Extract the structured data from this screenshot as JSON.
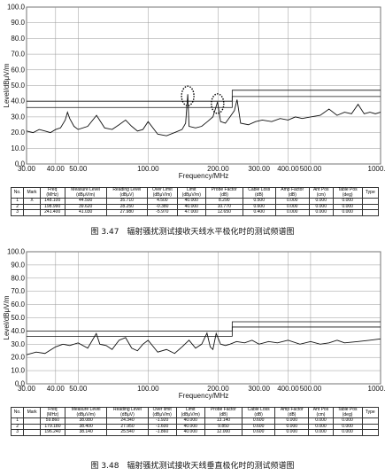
{
  "chart_data": [
    {
      "type": "line",
      "x_label": "Frequency/MHz",
      "y_label": "Level/dBμV/m",
      "log_x": true,
      "grid": true,
      "xlim": [
        30,
        1000
      ],
      "ylim": [
        0,
        100
      ],
      "xticks": [
        {
          "value": 30,
          "label": "30.00"
        },
        {
          "value": 40,
          "label": "40.00"
        },
        {
          "value": 50,
          "label": "50.00"
        },
        {
          "value": 100,
          "label": "100.00"
        },
        {
          "value": 200,
          "label": "200.00"
        },
        {
          "value": 300,
          "label": "300.00"
        },
        {
          "value": 400,
          "label": "400.00"
        },
        {
          "value": 500,
          "label": "500.00"
        },
        {
          "value": 1000,
          "label": "1000.00"
        }
      ],
      "yticks": [
        {
          "value": 0,
          "label": "0.0"
        },
        {
          "value": 10,
          "label": "10.0"
        },
        {
          "value": 20,
          "label": "20.0"
        },
        {
          "value": 30,
          "label": "30.0"
        },
        {
          "value": 40,
          "label": "40.0"
        },
        {
          "value": 50,
          "label": "50.0"
        },
        {
          "value": 60,
          "label": "60.0"
        },
        {
          "value": 70,
          "label": "70.0"
        },
        {
          "value": 80,
          "label": "80.0"
        },
        {
          "value": 90,
          "label": "90.0"
        },
        {
          "value": 100,
          "label": "100.0"
        }
      ],
      "series": [
        {
          "color": "#111111",
          "x": [
            30,
            32,
            34,
            36,
            38,
            40,
            42,
            44,
            45,
            46,
            48,
            50,
            55,
            60,
            65,
            70,
            75,
            80,
            85,
            90,
            95,
            100,
            110,
            120,
            130,
            140,
            145,
            148.1,
            150,
            160,
            170,
            180,
            190,
            198.99,
            205,
            215,
            225,
            235,
            241.4,
            250,
            270,
            290,
            310,
            340,
            370,
            400,
            430,
            460,
            500,
            550,
            600,
            650,
            700,
            750,
            800,
            850,
            900,
            950,
            1000
          ],
          "values": [
            21,
            20,
            22,
            21,
            20,
            22,
            23,
            28,
            33,
            29,
            24,
            22,
            24,
            31,
            23,
            22,
            25,
            28,
            24,
            21,
            22,
            27,
            19,
            18,
            20,
            22,
            26,
            44.5,
            24,
            23,
            24,
            27,
            30,
            39.62,
            27,
            26,
            30,
            34,
            41.03,
            26,
            25,
            27,
            28,
            27,
            29,
            28,
            30,
            29,
            30,
            31,
            35,
            31,
            33,
            32,
            38,
            32,
            33,
            32,
            33
          ]
        },
        {
          "color": "#111111",
          "x": [
            30,
            230,
            230,
            1000
          ],
          "values": [
            40,
            40,
            47,
            47
          ]
        },
        {
          "color": "#111111",
          "x": [
            30,
            230,
            230,
            1000
          ],
          "values": [
            36,
            36,
            43,
            43
          ]
        }
      ]
    },
    {
      "type": "line",
      "x_label": "Frequency/MHz",
      "y_label": "Level/dBμV/m",
      "log_x": true,
      "grid": true,
      "xlim": [
        30,
        1000
      ],
      "ylim": [
        0,
        100
      ],
      "xticks": [
        {
          "value": 30,
          "label": "30.00"
        },
        {
          "value": 40,
          "label": "40.00"
        },
        {
          "value": 50,
          "label": "50.00"
        },
        {
          "value": 100,
          "label": "100.00"
        },
        {
          "value": 200,
          "label": "200.00"
        },
        {
          "value": 300,
          "label": "300.00"
        },
        {
          "value": 400,
          "label": "400.00"
        },
        {
          "value": 500,
          "label": "500.00"
        },
        {
          "value": 1000,
          "label": "1000.00"
        }
      ],
      "yticks": [
        {
          "value": 0,
          "label": "0.0"
        },
        {
          "value": 10,
          "label": "10.0"
        },
        {
          "value": 20,
          "label": "20.0"
        },
        {
          "value": 30,
          "label": "30.0"
        },
        {
          "value": 40,
          "label": "40.0"
        },
        {
          "value": 50,
          "label": "50.0"
        },
        {
          "value": 60,
          "label": "60.0"
        },
        {
          "value": 70,
          "label": "70.0"
        },
        {
          "value": 80,
          "label": "80.0"
        },
        {
          "value": 90,
          "label": "90.0"
        },
        {
          "value": 100,
          "label": "100.0"
        }
      ],
      "series": [
        {
          "color": "#111111",
          "x": [
            30,
            33,
            36,
            40,
            43,
            46,
            50,
            55,
            59.86,
            62,
            66,
            70,
            75,
            80,
            85,
            90,
            95,
            100,
            110,
            120,
            130,
            140,
            150,
            160,
            170,
            179.18,
            185,
            190,
            196.24,
            205,
            215,
            225,
            240,
            260,
            280,
            300,
            330,
            360,
            400,
            450,
            500,
            550,
            600,
            650,
            700,
            800,
            900,
            1000
          ],
          "values": [
            22,
            24,
            23,
            28,
            30,
            29,
            31,
            27,
            38.08,
            30,
            29,
            26,
            33,
            35,
            27,
            25,
            30,
            33,
            24,
            26,
            23,
            28,
            33,
            27,
            30,
            38.4,
            28,
            26,
            38.14,
            30,
            29,
            30,
            32,
            31,
            33,
            30,
            32,
            31,
            33,
            30,
            32,
            30,
            31,
            33,
            31,
            32,
            33,
            34
          ]
        },
        {
          "color": "#111111",
          "x": [
            30,
            230,
            230,
            1000
          ],
          "values": [
            40,
            40,
            47,
            47
          ]
        },
        {
          "color": "#111111",
          "x": [
            30,
            230,
            230,
            1000
          ],
          "values": [
            36,
            36,
            43,
            43
          ]
        }
      ]
    }
  ],
  "tables": [
    {
      "header": [
        "No.",
        "Mark",
        "Freq\n(MHz)",
        "Measure Level\n(dBμV/m)",
        "Reading Level\n(dBμV)",
        "Over Limit\n(dBμV/m)",
        "Limit\n(dBμV/m)",
        "Probe Factor\n(dB)",
        "Cable Loss\n(dB)",
        "Amp Factor\n(dB)",
        "Ant Pos\n(cm)",
        "Table Pos\n(deg)",
        "Type"
      ],
      "rows": [
        [
          "1",
          "X",
          "148.100",
          "44.500",
          "35.710",
          "4.500",
          "40.000",
          "8.290",
          "0.500",
          "0.000",
          "0.000",
          "0.000",
          null
        ],
        [
          "2",
          null,
          "198.990",
          "39.620",
          "28.250",
          "-0.380",
          "40.000",
          "10.770",
          "0.600",
          "0.000",
          "0.000",
          "0.000",
          null
        ],
        [
          "3",
          null,
          "241.400",
          "41.030",
          "27.980",
          "-5.970",
          "47.000",
          "12.650",
          "0.400",
          "0.000",
          "0.000",
          "0.000",
          null
        ]
      ]
    },
    {
      "header": [
        "No.",
        "Mark",
        "Freq\n(MHz)",
        "Measure Level\n(dBμV/m)",
        "Reading Level\n(dBμV)",
        "Over limit\n(dBμV/m)",
        "Limit\n(dBμV/m)",
        "Probe Factor\n(dB)",
        "Cable Loss\n(dB)",
        "Amp Factor\n(dB)",
        "Ant Pos\n(cm)",
        "Table Pos\n(deg)",
        "Type"
      ],
      "rows": [
        [
          "1",
          null,
          "59.860",
          "38.080",
          "24.340",
          "-1.920",
          "40.000",
          "13.140",
          "0.600",
          "0.000",
          "0.000",
          "0.000",
          null
        ],
        [
          "2",
          null,
          "179.180",
          "38.400",
          "27.950",
          "-1.600",
          "40.000",
          "9.850",
          "0.600",
          "0.000",
          "0.000",
          "0.000",
          null
        ],
        [
          "3",
          null,
          "196.240",
          "38.140",
          "25.540",
          "-1.860",
          "40.000",
          "12.000",
          "0.600",
          "0.000",
          "0.000",
          "0.000",
          null
        ]
      ]
    }
  ],
  "captions": [
    "图 3.47　辐射骚扰测试接收天线水平极化时的测试频谱图",
    "图 3.48　辐射骚扰测试接收天线垂直极化时的测试频谱图"
  ]
}
